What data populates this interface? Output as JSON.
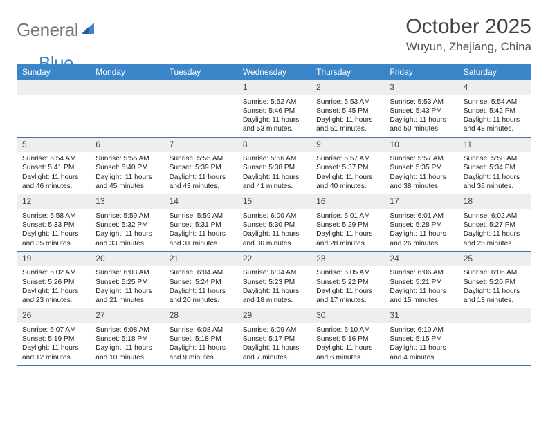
{
  "logo": {
    "text1": "General",
    "text2": "Blue"
  },
  "title": "October 2025",
  "location": "Wuyun, Zhejiang, China",
  "colors": {
    "header_bg": "#3a86c8",
    "header_text": "#ffffff",
    "daynum_bg": "#eceeef",
    "week_border": "#4a6fa0",
    "body_bg": "#ffffff",
    "title_color": "#444444",
    "location_color": "#555555",
    "logo_gray": "#777777",
    "logo_blue": "#3a86c8"
  },
  "fonts": {
    "title_size_pt": 22,
    "location_size_pt": 13,
    "dayheader_size_pt": 9,
    "cell_size_pt": 7.5
  },
  "day_headers": [
    "Sunday",
    "Monday",
    "Tuesday",
    "Wednesday",
    "Thursday",
    "Friday",
    "Saturday"
  ],
  "weeks": [
    [
      {
        "empty": true
      },
      {
        "empty": true
      },
      {
        "empty": true
      },
      {
        "num": "1",
        "sunrise": "5:52 AM",
        "sunset": "5:46 PM",
        "daylight": "11 hours and 53 minutes."
      },
      {
        "num": "2",
        "sunrise": "5:53 AM",
        "sunset": "5:45 PM",
        "daylight": "11 hours and 51 minutes."
      },
      {
        "num": "3",
        "sunrise": "5:53 AM",
        "sunset": "5:43 PM",
        "daylight": "11 hours and 50 minutes."
      },
      {
        "num": "4",
        "sunrise": "5:54 AM",
        "sunset": "5:42 PM",
        "daylight": "11 hours and 48 minutes."
      }
    ],
    [
      {
        "num": "5",
        "sunrise": "5:54 AM",
        "sunset": "5:41 PM",
        "daylight": "11 hours and 46 minutes."
      },
      {
        "num": "6",
        "sunrise": "5:55 AM",
        "sunset": "5:40 PM",
        "daylight": "11 hours and 45 minutes."
      },
      {
        "num": "7",
        "sunrise": "5:55 AM",
        "sunset": "5:39 PM",
        "daylight": "11 hours and 43 minutes."
      },
      {
        "num": "8",
        "sunrise": "5:56 AM",
        "sunset": "5:38 PM",
        "daylight": "11 hours and 41 minutes."
      },
      {
        "num": "9",
        "sunrise": "5:57 AM",
        "sunset": "5:37 PM",
        "daylight": "11 hours and 40 minutes."
      },
      {
        "num": "10",
        "sunrise": "5:57 AM",
        "sunset": "5:35 PM",
        "daylight": "11 hours and 38 minutes."
      },
      {
        "num": "11",
        "sunrise": "5:58 AM",
        "sunset": "5:34 PM",
        "daylight": "11 hours and 36 minutes."
      }
    ],
    [
      {
        "num": "12",
        "sunrise": "5:58 AM",
        "sunset": "5:33 PM",
        "daylight": "11 hours and 35 minutes."
      },
      {
        "num": "13",
        "sunrise": "5:59 AM",
        "sunset": "5:32 PM",
        "daylight": "11 hours and 33 minutes."
      },
      {
        "num": "14",
        "sunrise": "5:59 AM",
        "sunset": "5:31 PM",
        "daylight": "11 hours and 31 minutes."
      },
      {
        "num": "15",
        "sunrise": "6:00 AM",
        "sunset": "5:30 PM",
        "daylight": "11 hours and 30 minutes."
      },
      {
        "num": "16",
        "sunrise": "6:01 AM",
        "sunset": "5:29 PM",
        "daylight": "11 hours and 28 minutes."
      },
      {
        "num": "17",
        "sunrise": "6:01 AM",
        "sunset": "5:28 PM",
        "daylight": "11 hours and 26 minutes."
      },
      {
        "num": "18",
        "sunrise": "6:02 AM",
        "sunset": "5:27 PM",
        "daylight": "11 hours and 25 minutes."
      }
    ],
    [
      {
        "num": "19",
        "sunrise": "6:02 AM",
        "sunset": "5:26 PM",
        "daylight": "11 hours and 23 minutes."
      },
      {
        "num": "20",
        "sunrise": "6:03 AM",
        "sunset": "5:25 PM",
        "daylight": "11 hours and 21 minutes."
      },
      {
        "num": "21",
        "sunrise": "6:04 AM",
        "sunset": "5:24 PM",
        "daylight": "11 hours and 20 minutes."
      },
      {
        "num": "22",
        "sunrise": "6:04 AM",
        "sunset": "5:23 PM",
        "daylight": "11 hours and 18 minutes."
      },
      {
        "num": "23",
        "sunrise": "6:05 AM",
        "sunset": "5:22 PM",
        "daylight": "11 hours and 17 minutes."
      },
      {
        "num": "24",
        "sunrise": "6:06 AM",
        "sunset": "5:21 PM",
        "daylight": "11 hours and 15 minutes."
      },
      {
        "num": "25",
        "sunrise": "6:06 AM",
        "sunset": "5:20 PM",
        "daylight": "11 hours and 13 minutes."
      }
    ],
    [
      {
        "num": "26",
        "sunrise": "6:07 AM",
        "sunset": "5:19 PM",
        "daylight": "11 hours and 12 minutes."
      },
      {
        "num": "27",
        "sunrise": "6:08 AM",
        "sunset": "5:18 PM",
        "daylight": "11 hours and 10 minutes."
      },
      {
        "num": "28",
        "sunrise": "6:08 AM",
        "sunset": "5:18 PM",
        "daylight": "11 hours and 9 minutes."
      },
      {
        "num": "29",
        "sunrise": "6:09 AM",
        "sunset": "5:17 PM",
        "daylight": "11 hours and 7 minutes."
      },
      {
        "num": "30",
        "sunrise": "6:10 AM",
        "sunset": "5:16 PM",
        "daylight": "11 hours and 6 minutes."
      },
      {
        "num": "31",
        "sunrise": "6:10 AM",
        "sunset": "5:15 PM",
        "daylight": "11 hours and 4 minutes."
      },
      {
        "empty": true
      }
    ]
  ],
  "labels": {
    "sunrise": "Sunrise:",
    "sunset": "Sunset:",
    "daylight": "Daylight:"
  }
}
